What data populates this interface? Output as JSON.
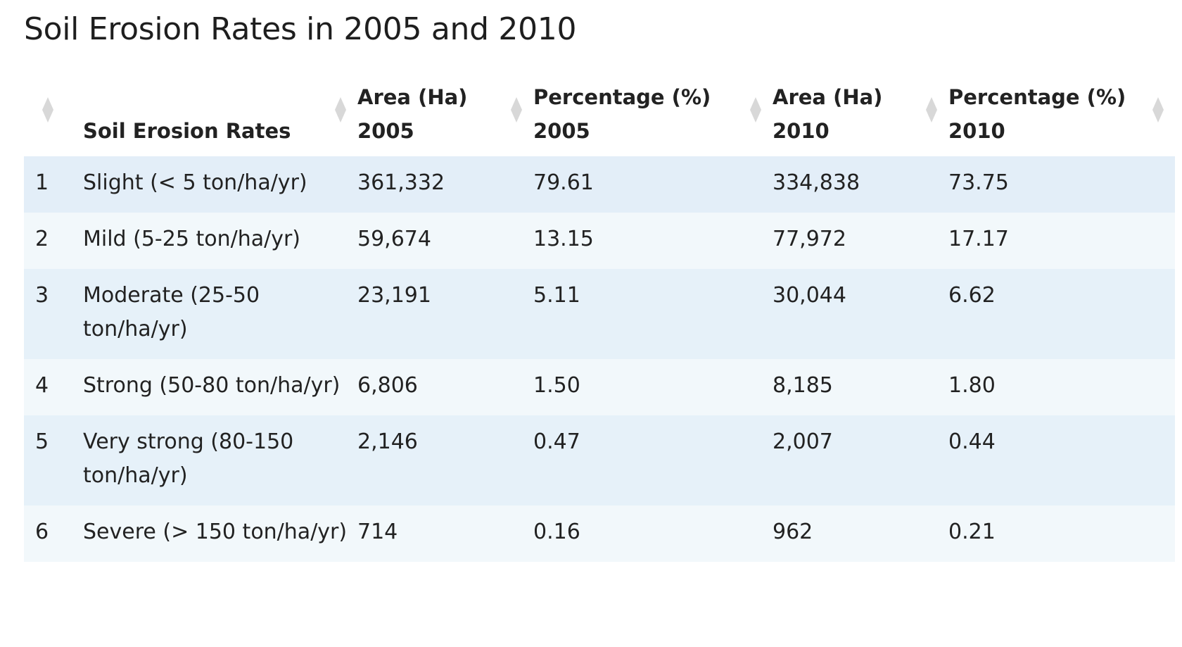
{
  "page": {
    "title": "Soil Erosion Rates in 2005 and 2010"
  },
  "table": {
    "headers": [
      {
        "line1": "",
        "line2": ""
      },
      {
        "line1": "",
        "line2": "Soil Erosion Rates"
      },
      {
        "line1": "Area (Ha)",
        "line2": "2005"
      },
      {
        "line1": "Percentage (%)",
        "line2": "2005"
      },
      {
        "line1": "Area (Ha)",
        "line2": "2010"
      },
      {
        "line1": "Percentage (%)",
        "line2": "2010"
      }
    ],
    "rows": [
      {
        "index": "1",
        "rate": "Slight (< 5 ton/ha/yr)",
        "area_2005": "361,332",
        "pct_2005": "79.61",
        "area_2010": "334,838",
        "pct_2010": "73.75"
      },
      {
        "index": "2",
        "rate": "Mild (5-25 ton/ha/yr)",
        "area_2005": "59,674",
        "pct_2005": "13.15",
        "area_2010": "77,972",
        "pct_2010": "17.17"
      },
      {
        "index": "3",
        "rate": "Moderate (25-50 ton/ha/yr)",
        "area_2005": "23,191",
        "pct_2005": "5.11",
        "area_2010": "30,044",
        "pct_2010": "6.62"
      },
      {
        "index": "4",
        "rate": "Strong (50-80 ton/ha/yr)",
        "area_2005": "6,806",
        "pct_2005": "1.50",
        "area_2010": "8,185",
        "pct_2010": "1.80"
      },
      {
        "index": "5",
        "rate": "Very strong (80-150 ton/ha/yr)",
        "area_2005": "2,146",
        "pct_2005": "0.47",
        "area_2010": "2,007",
        "pct_2010": "0.44"
      },
      {
        "index": "6",
        "rate": "Severe (> 150 ton/ha/yr)",
        "area_2005": "714",
        "pct_2005": "0.16",
        "area_2010": "962",
        "pct_2010": "0.21"
      }
    ]
  },
  "icons": {
    "sort": "sort-icon"
  },
  "colors": {
    "row_bg_odd": "#e6f1f9",
    "row_bg_even": "#f2f8fb",
    "sort_icon": "#d8d8d8"
  }
}
